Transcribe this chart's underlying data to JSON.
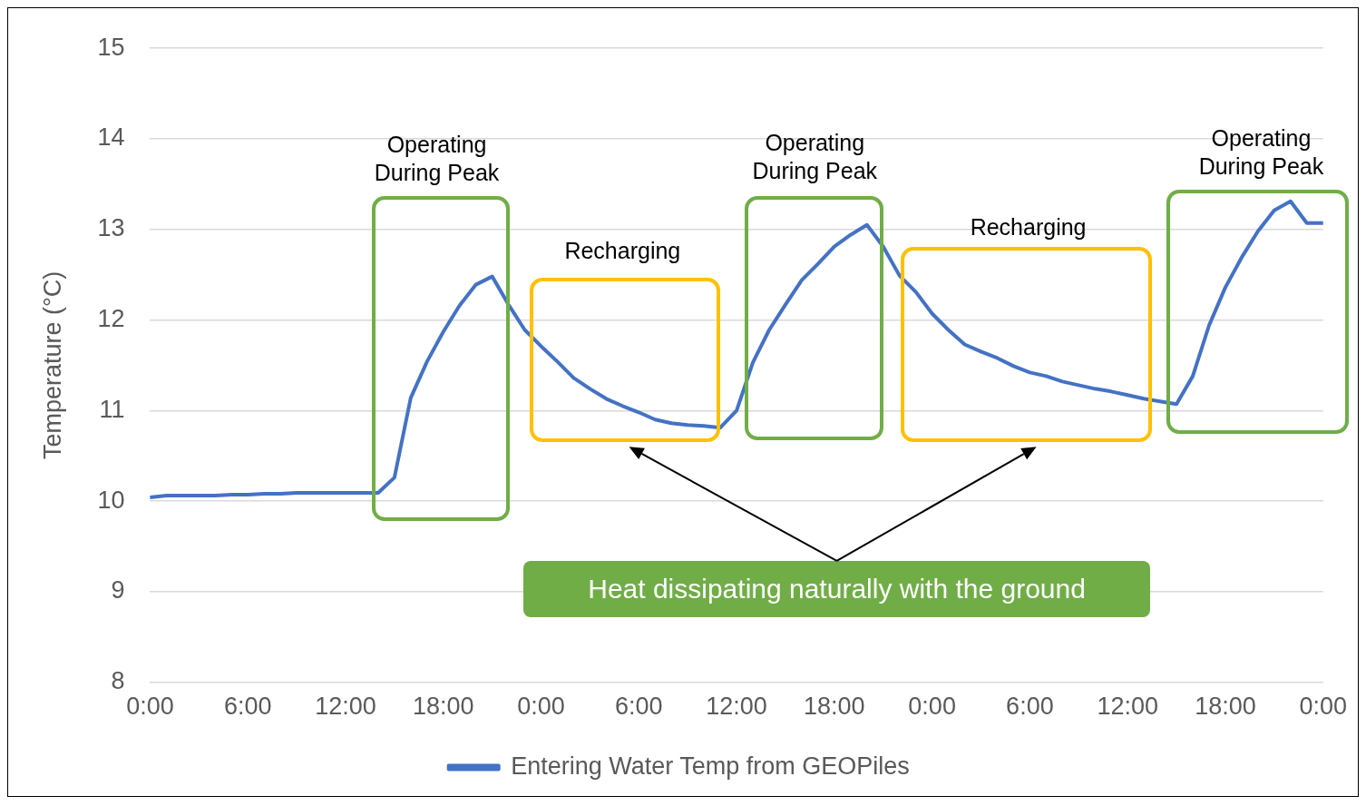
{
  "chart_data": {
    "type": "line",
    "ylabel": "Temperature (°C)",
    "categories": [
      "0:00",
      null,
      null,
      null,
      null,
      null,
      "6:00",
      null,
      null,
      null,
      null,
      null,
      "12:00",
      null,
      null,
      null,
      null,
      null,
      "18:00",
      null,
      null,
      null,
      null,
      null,
      "0:00",
      null,
      null,
      null,
      null,
      null,
      "6:00",
      null,
      null,
      null,
      null,
      null,
      "12:00",
      null,
      null,
      null,
      null,
      null,
      "18:00",
      null,
      null,
      null,
      null,
      null,
      "0:00",
      null,
      null,
      null,
      null,
      null,
      "6:00",
      null,
      null,
      null,
      null,
      null,
      "12:00",
      null,
      null,
      null,
      null,
      null,
      "18:00",
      null,
      null,
      null,
      null,
      null,
      "0:00"
    ],
    "series": [
      {
        "name": "Entering Water Temp from GEOPiles",
        "color": "#4472c4",
        "values": [
          10.04,
          10.06,
          10.06,
          10.06,
          10.06,
          10.07,
          10.07,
          10.08,
          10.08,
          10.09,
          10.09,
          10.09,
          10.09,
          10.09,
          10.09,
          10.26,
          11.14,
          11.54,
          11.87,
          12.16,
          12.39,
          12.48,
          12.17,
          11.89,
          11.71,
          11.54,
          11.36,
          11.24,
          11.13,
          11.05,
          10.98,
          10.9,
          10.86,
          10.84,
          10.83,
          10.81,
          11.0,
          11.53,
          11.89,
          12.17,
          12.44,
          12.62,
          12.81,
          12.94,
          13.05,
          12.81,
          12.49,
          12.31,
          12.07,
          11.89,
          11.73,
          11.65,
          11.58,
          11.49,
          11.42,
          11.38,
          11.32,
          11.28,
          11.24,
          11.21,
          11.17,
          11.13,
          11.1,
          11.07,
          11.38,
          11.94,
          12.36,
          12.69,
          12.98,
          13.21,
          13.31,
          13.07,
          13.07
        ]
      }
    ],
    "ylim": [
      8,
      15
    ],
    "yticks": [
      8,
      9,
      10,
      11,
      12,
      13,
      14,
      15
    ],
    "grid": "y",
    "legend": "bottom",
    "marker": "none",
    "line_style": "solid",
    "annotations": [
      "Operating During Peak",
      "Recharging",
      "Operating During Peak",
      "Recharging",
      "Operating During Peak",
      "Heat dissipating naturally with the ground"
    ]
  }
}
